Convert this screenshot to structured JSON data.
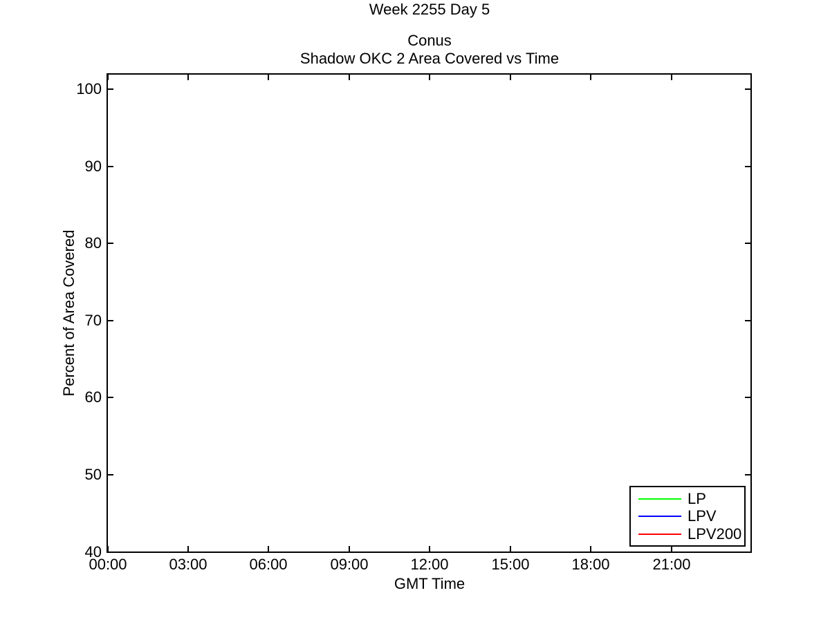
{
  "figure": {
    "background": "#ffffff",
    "text_color": "#000000",
    "axis_color": "#000000"
  },
  "chart_data": {
    "type": "line",
    "suptitle": "Week 2255 Day 5",
    "title_line1": "Conus",
    "title_line2": "Shadow OKC 2 Area Covered vs Time",
    "xlabel": "GMT Time",
    "ylabel": "Percent of Area Covered",
    "grid": false,
    "x_axis": {
      "unit": "hours GMT",
      "min": 0,
      "max": 24,
      "ticks": [
        {
          "value": 0,
          "label": "00:00"
        },
        {
          "value": 3,
          "label": "03:00"
        },
        {
          "value": 6,
          "label": "06:00"
        },
        {
          "value": 9,
          "label": "09:00"
        },
        {
          "value": 12,
          "label": "12:00"
        },
        {
          "value": 15,
          "label": "15:00"
        },
        {
          "value": 18,
          "label": "18:00"
        },
        {
          "value": 21,
          "label": "21:00"
        }
      ]
    },
    "y_axis": {
      "unit": "percent",
      "min": 40,
      "max": 102,
      "ticks": [
        {
          "value": 40,
          "label": "40"
        },
        {
          "value": 50,
          "label": "50"
        },
        {
          "value": 60,
          "label": "60"
        },
        {
          "value": 70,
          "label": "70"
        },
        {
          "value": 80,
          "label": "80"
        },
        {
          "value": 90,
          "label": "90"
        },
        {
          "value": 100,
          "label": "100"
        }
      ]
    },
    "series": [
      {
        "name": "LP",
        "color": "#00ff00",
        "x": [],
        "y": []
      },
      {
        "name": "LPV",
        "color": "#0000ff",
        "x": [],
        "y": []
      },
      {
        "name": "LPV200",
        "color": "#ff0000",
        "x": [],
        "y": []
      }
    ],
    "legend": {
      "position": "inside-lower-right",
      "entries": [
        "LP",
        "LPV",
        "LPV200"
      ]
    }
  }
}
